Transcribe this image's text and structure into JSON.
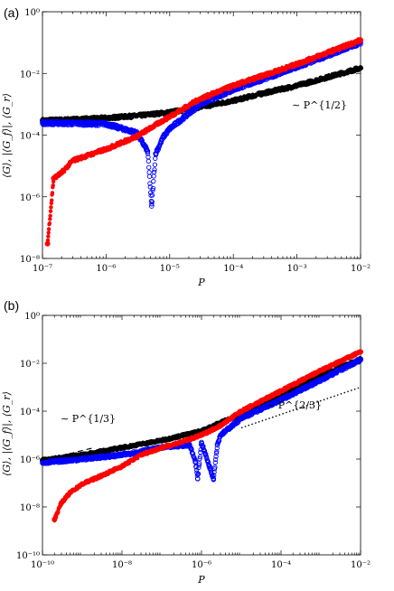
{
  "chart_data": [
    {
      "panel_label": "(a)",
      "type": "scatter",
      "xscale": "log",
      "yscale": "log",
      "xlim": [
        1e-07,
        0.01
      ],
      "ylim": [
        1e-08,
        1
      ],
      "xticks": [
        "10⁻⁷",
        "10⁻⁶",
        "10⁻⁵",
        "10⁻⁴",
        "10⁻³",
        "10⁻²"
      ],
      "yticks": [
        "10⁻⁸",
        "10⁻⁶",
        "10⁻⁴",
        "10⁻²",
        "10⁰"
      ],
      "xlabel": "P",
      "ylabel": "⟨G⟩, |⟨G_f⟩|, ⟨G_r⟩",
      "series": [
        {
          "color": "#000000",
          "marker": "filled-circle",
          "x": [
            1e-07,
            3e-07,
            1e-06,
            3e-06,
            1e-05,
            3e-05,
            0.0001,
            0.0003,
            0.001,
            0.003,
            0.01
          ],
          "y": [
            0.0003,
            0.00032,
            0.00036,
            0.00042,
            0.00055,
            0.0008,
            0.0013,
            0.0023,
            0.004,
            0.0075,
            0.015
          ]
        },
        {
          "color": "#0000ff",
          "marker": "open-circle",
          "x": [
            1e-07,
            1e-06,
            3e-06,
            4.5e-06,
            5.2e-06,
            6e-06,
            8e-06,
            1e-05,
            3e-05,
            0.0001,
            0.001,
            0.01
          ],
          "y": [
            0.00025,
            0.00023,
            0.00012,
            3e-05,
            5e-07,
            2.5e-05,
            9e-05,
            0.00016,
            0.001,
            0.003,
            0.016,
            0.1
          ]
        },
        {
          "color": "#ff0000",
          "marker": "filled-circle",
          "x": [
            1.2e-07,
            1.5e-07,
            2e-07,
            3e-07,
            1e-06,
            3e-06,
            1e-05,
            3e-05,
            0.0001,
            0.001,
            0.01
          ],
          "y": [
            3e-08,
            4e-06,
            6e-06,
            1.5e-05,
            3.5e-05,
            9e-05,
            0.0004,
            0.0015,
            0.004,
            0.02,
            0.12
          ]
        }
      ],
      "guide": {
        "style": "dashed",
        "annotation": "∼ P^{1/2}",
        "x": [
          0.0001,
          0.01
        ],
        "y": [
          0.0012,
          0.012
        ]
      }
    },
    {
      "panel_label": "(b)",
      "type": "scatter",
      "xscale": "log",
      "yscale": "log",
      "xlim": [
        1e-10,
        0.01
      ],
      "ylim": [
        1e-10,
        1
      ],
      "xticks": [
        "10⁻¹⁰",
        "10⁻⁸",
        "10⁻⁶",
        "10⁻⁴",
        "10⁻²"
      ],
      "yticks": [
        "10⁻¹⁰",
        "10⁻⁸",
        "10⁻⁶",
        "10⁻⁴",
        "10⁻²",
        "10⁰"
      ],
      "xlabel": "P",
      "ylabel": "⟨G⟩, |⟨G_f⟩|, ⟨G_r⟩",
      "series": [
        {
          "color": "#000000",
          "marker": "filled-circle",
          "x": [
            1e-10,
            1e-09,
            1e-08,
            1e-07,
            1e-06,
            1e-05,
            0.0001,
            0.001,
            0.01
          ],
          "y": [
            9e-07,
            1.5e-06,
            3e-06,
            6e-06,
            1.5e-05,
            8e-05,
            0.0005,
            0.003,
            0.015
          ]
        },
        {
          "color": "#0000ff",
          "marker": "open-circle",
          "x": [
            1e-10,
            1e-09,
            1e-08,
            1e-07,
            5e-07,
            7e-07,
            8e-07,
            1e-06,
            2e-06,
            2.5e-06,
            3e-06,
            1e-05,
            0.0001,
            0.001,
            0.01
          ],
          "y": [
            7e-07,
            1e-06,
            1.5e-06,
            3e-06,
            4e-06,
            8e-07,
            1.5e-07,
            5e-06,
            1.5e-07,
            4e-06,
            1e-05,
            5e-05,
            0.0003,
            0.002,
            0.014
          ]
        },
        {
          "color": "#ff0000",
          "marker": "filled-circle",
          "x": [
            2e-10,
            3e-10,
            5e-10,
            1e-09,
            3e-09,
            1e-08,
            3e-08,
            1e-07,
            3e-07,
            1e-06,
            3e-06,
            1e-05,
            0.0001,
            0.001,
            0.01
          ],
          "y": [
            3e-09,
            1.5e-08,
            4e-08,
            9e-08,
            2e-07,
            5e-07,
            1.5e-06,
            3e-06,
            5e-06,
            1e-05,
            2.5e-05,
            0.0001,
            0.0007,
            0.005,
            0.03
          ]
        }
      ],
      "guides": [
        {
          "style": "dashed",
          "annotation": "∼ P^{1/3}",
          "x": [
            1e-10,
            2e-09
          ],
          "y": [
            9e-07,
            3e-06
          ]
        },
        {
          "style": "dotted",
          "annotation": "∼ P^{2/3}",
          "x": [
            1e-05,
            0.01
          ],
          "y": [
            2e-05,
            0.001
          ]
        }
      ]
    }
  ]
}
